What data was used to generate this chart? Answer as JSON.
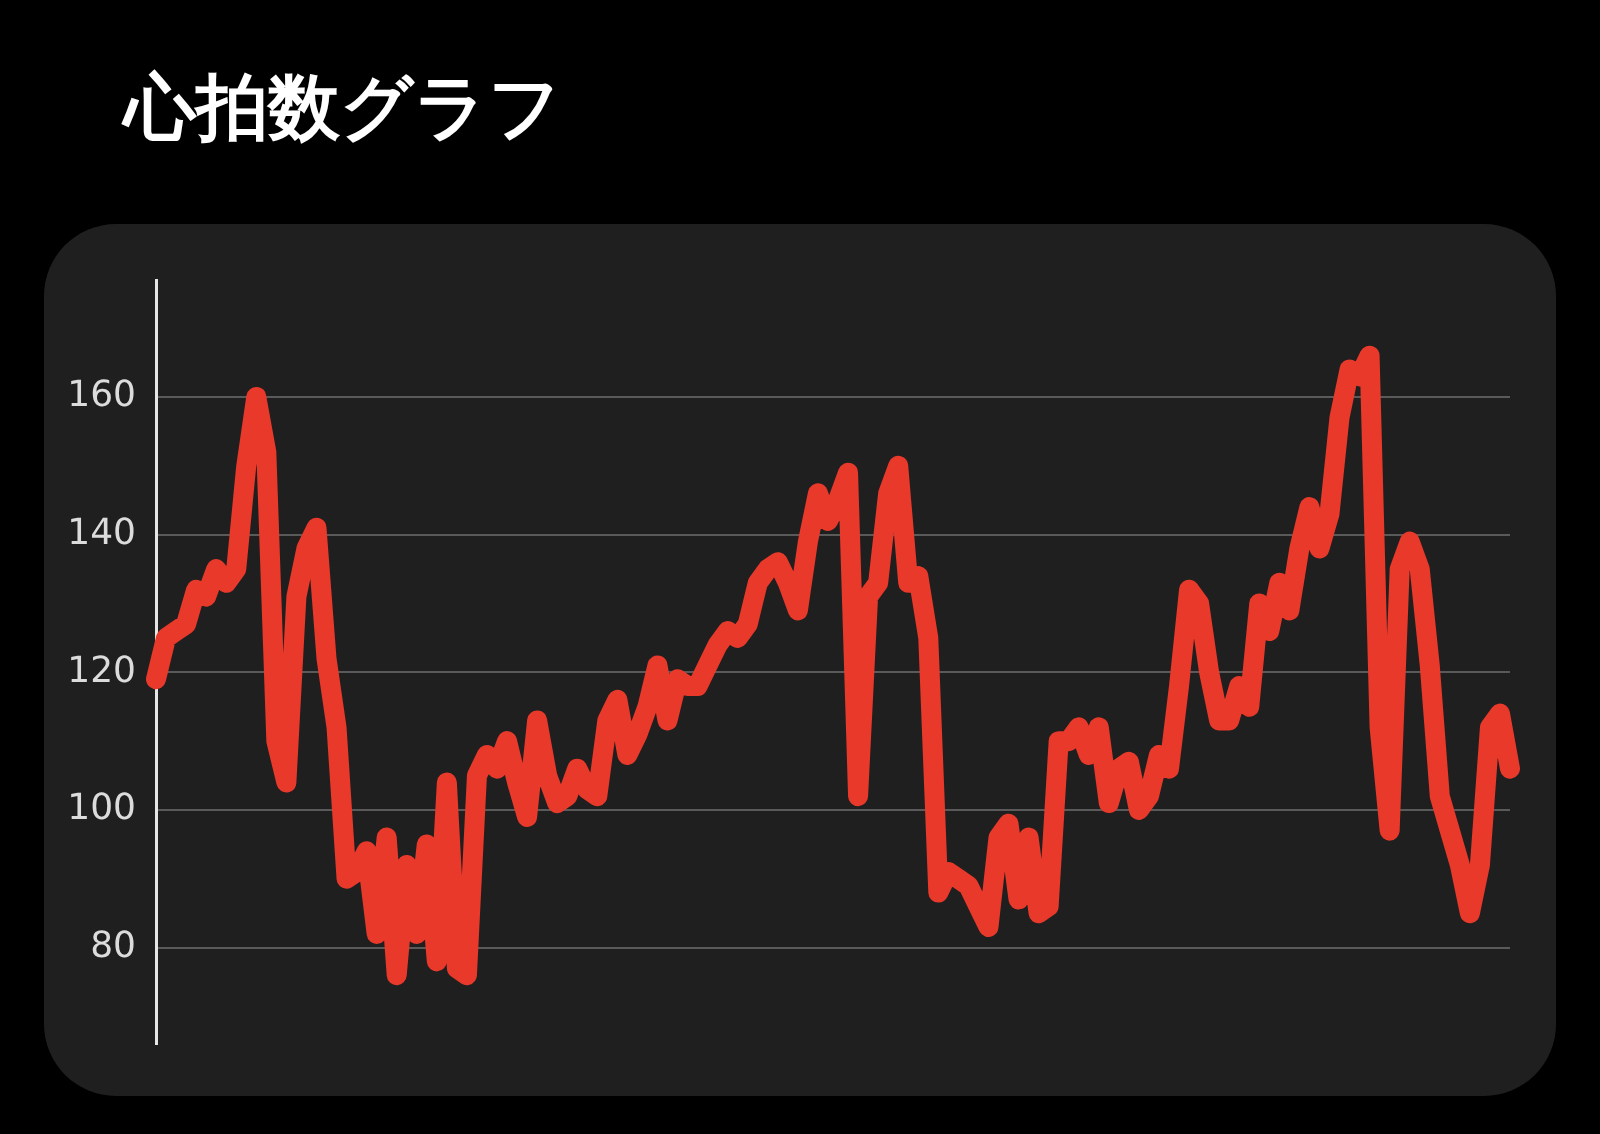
{
  "chart_data": {
    "type": "line",
    "title": "心拍数グラフ",
    "categories": [
      null,
      null,
      null,
      null,
      null,
      null,
      null,
      null,
      null,
      null,
      null,
      null,
      null,
      null,
      null,
      null,
      null,
      null,
      null,
      null,
      null,
      null,
      null,
      null,
      null,
      null,
      null,
      null,
      null,
      null,
      null,
      null,
      null,
      null,
      null,
      null,
      null,
      null,
      null,
      null,
      null,
      null,
      null,
      null,
      null,
      null,
      null,
      null,
      null,
      null,
      null,
      null,
      null,
      null,
      null,
      null,
      null,
      null,
      null,
      null,
      null,
      null,
      null,
      null,
      null,
      null,
      null,
      null,
      null,
      null,
      null,
      null,
      null,
      null,
      null,
      null,
      null,
      null,
      null,
      null,
      null,
      null,
      null,
      null,
      null,
      null,
      null,
      null,
      null,
      null,
      null,
      null,
      null,
      null,
      null,
      null,
      null,
      null,
      null,
      null,
      null,
      null,
      null,
      null,
      null,
      null,
      null,
      null,
      null,
      null,
      null,
      null,
      null,
      null,
      null,
      null,
      null,
      null,
      null,
      null,
      null,
      null,
      null,
      null,
      null,
      null,
      null,
      null,
      null,
      null,
      null,
      null,
      null,
      null,
      null,
      null
    ],
    "values": [
      119,
      125,
      126,
      127,
      132,
      131,
      135,
      133,
      135,
      150,
      160,
      152,
      110,
      104,
      131,
      138,
      141,
      122,
      112,
      90,
      91,
      94,
      82,
      96,
      76,
      92,
      82,
      95,
      78,
      104,
      77,
      76,
      105,
      108,
      106,
      110,
      104,
      99,
      113,
      105,
      101,
      102,
      106,
      103,
      102,
      113,
      116,
      108,
      111,
      115,
      121,
      113,
      119,
      118,
      118,
      121,
      124,
      126,
      125,
      127,
      133,
      135,
      136,
      133,
      129,
      139,
      146,
      142,
      145,
      149,
      102,
      131,
      133,
      146,
      150,
      133,
      134,
      125,
      88,
      91,
      90,
      89,
      86,
      83,
      96,
      98,
      87,
      96,
      85,
      86,
      110,
      110,
      112,
      108,
      112,
      101,
      106,
      107,
      100,
      102,
      108,
      106,
      118,
      132,
      130,
      120,
      113,
      113,
      118,
      115,
      130,
      126,
      133,
      129,
      138,
      144,
      138,
      143,
      157,
      164,
      163,
      166,
      112,
      97,
      135,
      139,
      135,
      121,
      102,
      97,
      92,
      85,
      92,
      112,
      114,
      106
    ],
    "color": "#e8392b",
    "line_style": "solid",
    "ylim": [
      66,
      177
    ],
    "yticks": [
      80,
      100,
      120,
      140,
      160
    ],
    "grid": "y",
    "legend": false,
    "tick_labels": "y"
  }
}
